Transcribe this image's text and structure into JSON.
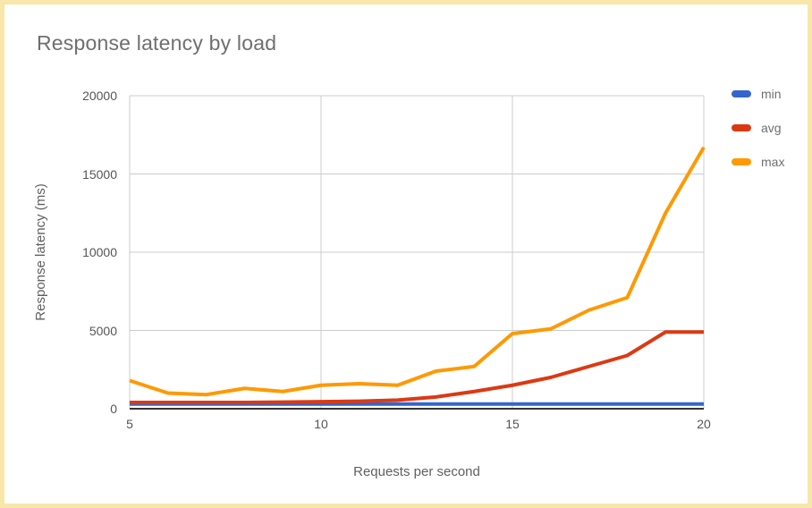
{
  "window": {
    "frame_border_color": "#f8e7a8",
    "background_color": "#ffffff"
  },
  "chart_data": {
    "type": "line",
    "title": "Response latency by load",
    "xlabel": "Requests per second",
    "ylabel": "Response latency (ms)",
    "x": [
      5,
      6,
      7,
      8,
      9,
      10,
      11,
      12,
      13,
      14,
      15,
      16,
      17,
      18,
      19,
      20
    ],
    "x_ticks": [
      5,
      10,
      15,
      20
    ],
    "y_ticks": [
      0,
      5000,
      10000,
      15000,
      20000
    ],
    "xlim": [
      5,
      20
    ],
    "ylim": [
      0,
      20000
    ],
    "grid": true,
    "legend_position": "right",
    "colors": {
      "gridline": "#cccccc",
      "baseline": "#333333"
    },
    "series": [
      {
        "name": "min",
        "color": "#3366cc",
        "values": [
          300,
          300,
          300,
          300,
          300,
          300,
          300,
          300,
          300,
          300,
          300,
          300,
          300,
          300,
          300,
          300
        ]
      },
      {
        "name": "avg",
        "color": "#dc3912",
        "values": [
          400,
          400,
          400,
          400,
          420,
          450,
          480,
          550,
          750,
          1100,
          1500,
          2000,
          2700,
          3400,
          4900,
          4900
        ]
      },
      {
        "name": "max",
        "color": "#ff9900",
        "values": [
          1800,
          1000,
          900,
          1300,
          1100,
          1500,
          1600,
          1500,
          2400,
          2700,
          4800,
          5100,
          6300,
          7100,
          12500,
          16700
        ]
      }
    ]
  }
}
